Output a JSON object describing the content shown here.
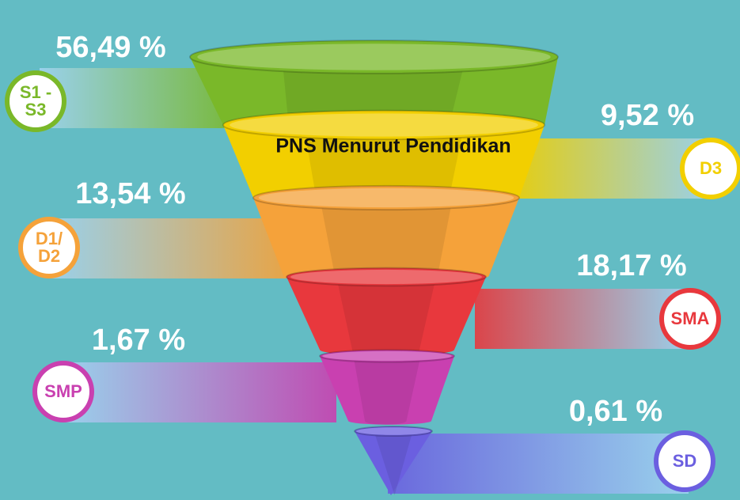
{
  "title": "PNS Menurut Pendidikan",
  "items": [
    {
      "label": "S1 -\nS3",
      "value": "56,49 %",
      "color": "#7ab829"
    },
    {
      "label": "D3",
      "value": "9,52 %",
      "color": "#f2cf00"
    },
    {
      "label": "D1/\nD2",
      "value": "13,54 %",
      "color": "#f5a23a"
    },
    {
      "label": "SMA",
      "value": "18,17 %",
      "color": "#e8383d"
    },
    {
      "label": "SMP",
      "value": "1,67 %",
      "color": "#c940b0"
    },
    {
      "label": "SD",
      "value": "0,61 %",
      "color": "#6b5fe0"
    }
  ]
}
